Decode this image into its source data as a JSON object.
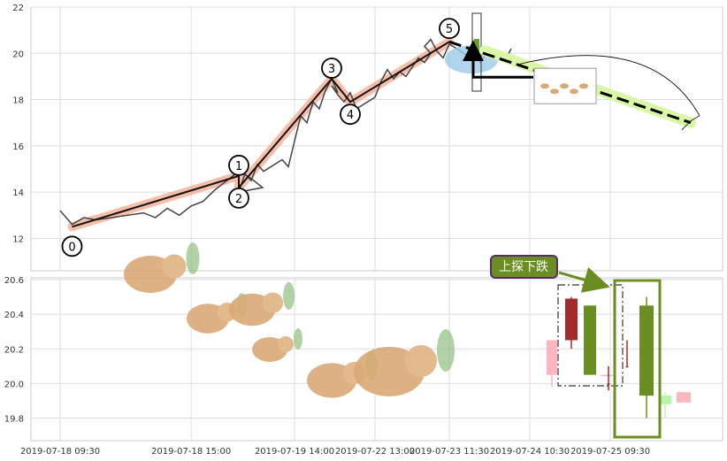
{
  "chart_data": [
    {
      "type": "line",
      "panel": "top",
      "ylim": [
        10.6,
        22
      ],
      "y_ticks": [
        "12",
        "14",
        "16",
        "18",
        "20",
        "22"
      ],
      "price_series": [
        [
          "2019-07-18 09:30",
          13.2
        ],
        [
          "2019-07-18 10:00",
          12.6
        ],
        [
          "2019-07-18 10:30",
          12.9
        ],
        [
          "2019-07-18 11:00",
          12.8
        ],
        [
          "2019-07-18 13:00",
          13.1
        ],
        [
          "2019-07-18 13:30",
          12.9
        ],
        [
          "2019-07-18 14:00",
          13.3
        ],
        [
          "2019-07-18 14:30",
          13.0
        ],
        [
          "2019-07-18 15:00",
          13.4
        ],
        [
          "2019-07-18 15:30",
          13.6
        ],
        [
          "2019-07-18 16:00",
          14.1
        ],
        [
          "2019-07-18 16:30",
          14.5
        ],
        [
          "2019-07-18 17:00",
          14.9
        ],
        [
          "2019-07-18 17:30",
          14.6
        ],
        [
          "2019-07-18 18:00",
          14.2
        ],
        [
          "2019-07-19 09:30",
          14.0
        ],
        [
          "2019-07-19 10:00",
          14.8
        ],
        [
          "2019-07-19 10:30",
          14.5
        ],
        [
          "2019-07-19 11:00",
          15.2
        ],
        [
          "2019-07-19 11:30",
          14.9
        ],
        [
          "2019-07-19 13:00",
          15.4
        ],
        [
          "2019-07-19 13:30",
          15.1
        ],
        [
          "2019-07-19 14:00",
          16.2
        ],
        [
          "2019-07-19 14:30",
          17.3
        ],
        [
          "2019-07-19 15:00",
          17.0
        ],
        [
          "2019-07-19 15:30",
          17.9
        ],
        [
          "2019-07-19 16:00",
          17.6
        ],
        [
          "2019-07-19 16:30",
          18.4
        ],
        [
          "2019-07-19 17:00",
          18.9
        ],
        [
          "2019-07-19 17:30",
          18.3
        ],
        [
          "2019-07-22 09:30",
          18.6
        ],
        [
          "2019-07-22 10:00",
          18.2
        ],
        [
          "2019-07-22 10:30",
          17.9
        ],
        [
          "2019-07-22 11:00",
          18.3
        ],
        [
          "2019-07-22 11:30",
          17.6
        ],
        [
          "2019-07-22 13:00",
          18.1
        ],
        [
          "2019-07-22 13:30",
          18.8
        ],
        [
          "2019-07-22 14:00",
          19.3
        ],
        [
          "2019-07-22 14:30",
          18.9
        ],
        [
          "2019-07-22 15:00",
          19.2
        ],
        [
          "2019-07-22 15:30",
          19.0
        ],
        [
          "2019-07-22 16:00",
          19.4
        ],
        [
          "2019-07-22 16:30",
          19.8
        ],
        [
          "2019-07-22 17:00",
          19.6
        ],
        [
          "2019-07-22 17:30",
          20.0
        ],
        [
          "2019-07-23 09:30",
          20.3
        ],
        [
          "2019-07-23 10:00",
          20.6
        ],
        [
          "2019-07-23 10:30",
          20.1
        ],
        [
          "2019-07-23 11:00",
          19.8
        ],
        [
          "2019-07-23 11:30",
          20.4
        ],
        [
          "2019-07-23 13:00",
          19.9
        ],
        [
          "2019-07-23 13:30",
          20.2
        ],
        [
          "2019-07-23 14:00",
          19.6
        ],
        [
          "2019-07-23 14:30",
          20.0
        ],
        [
          "2019-07-23 15:00",
          19.8
        ],
        [
          "2019-07-23 15:30",
          20.1
        ],
        [
          "2019-07-23 16:00",
          19.7
        ],
        [
          "2019-07-23 16:30",
          20.2
        ]
      ],
      "wave_points": [
        {
          "label": "0",
          "x": "2019-07-18 10:00",
          "y": 12.5
        },
        {
          "label": "1",
          "x": "2019-07-18 17:00",
          "y": 14.7
        },
        {
          "label": "2",
          "x": "2019-07-19 09:30",
          "y": 14.2
        },
        {
          "label": "3",
          "x": "2019-07-19 17:00",
          "y": 18.9
        },
        {
          "label": "4",
          "x": "2019-07-22 11:00",
          "y": 17.9
        },
        {
          "label": "5",
          "x": "2019-07-23 11:30",
          "y": 20.5
        }
      ],
      "projection": {
        "from": [
          "2019-07-23 11:30",
          20.5
        ],
        "to": [
          "2019-07-25 16:00",
          17.0
        ]
      },
      "colors": {
        "price": "#444444",
        "wave_band": "#f6b49a",
        "wave_line": "#111111",
        "projection_band": "#d9f7a6",
        "highlight": "#9ccbe8",
        "marker_candle": "#6e9e2e"
      }
    },
    {
      "type": "candlestick",
      "panel": "bottom",
      "ylim": [
        19.67,
        20.61
      ],
      "y_ticks": [
        "19.8",
        "20.0",
        "20.2",
        "20.4",
        "20.6"
      ],
      "x_ticks": [
        "2019-07-18 09:30",
        "2019-07-18 15:00",
        "2019-07-19 14:00",
        "2019-07-22 13:00",
        "2019-07-23 11:30",
        "2019-07-24 10:30",
        "2019-07-25 09:30"
      ],
      "candles": [
        {
          "open": 20.05,
          "high": 20.25,
          "low": 19.98,
          "close": 20.25,
          "color": "#ffb6c1"
        },
        {
          "open": 20.49,
          "high": 20.5,
          "low": 20.2,
          "close": 20.25,
          "color": "#a52a2a"
        },
        {
          "open": 20.05,
          "high": 20.45,
          "low": 20.05,
          "close": 20.45,
          "color": "#6b8e23"
        },
        {
          "open": 20.05,
          "high": 20.05,
          "low": 20.05,
          "close": 20.05,
          "color": "#ffb6c1"
        },
        {
          "open": 20.0,
          "high": 20.1,
          "low": 19.96,
          "close": 20.0,
          "color": "#a52a2a"
        },
        {
          "open": 20.1,
          "high": 20.25,
          "low": 20.1,
          "close": 20.1,
          "color": "#a52a2a"
        },
        {
          "open": 19.93,
          "high": 20.5,
          "low": 19.8,
          "close": 20.45,
          "color": "#6b8e23"
        },
        {
          "open": 19.88,
          "high": 19.95,
          "low": 19.8,
          "close": 19.93,
          "color": "#b8f5a8"
        },
        {
          "open": 19.89,
          "high": 19.95,
          "low": 19.89,
          "close": 19.95,
          "color": "#ffb6c1"
        }
      ],
      "annotation": {
        "text": "上探下跌",
        "bg": "#6b8e23",
        "border": "#5a2a6a"
      }
    }
  ]
}
